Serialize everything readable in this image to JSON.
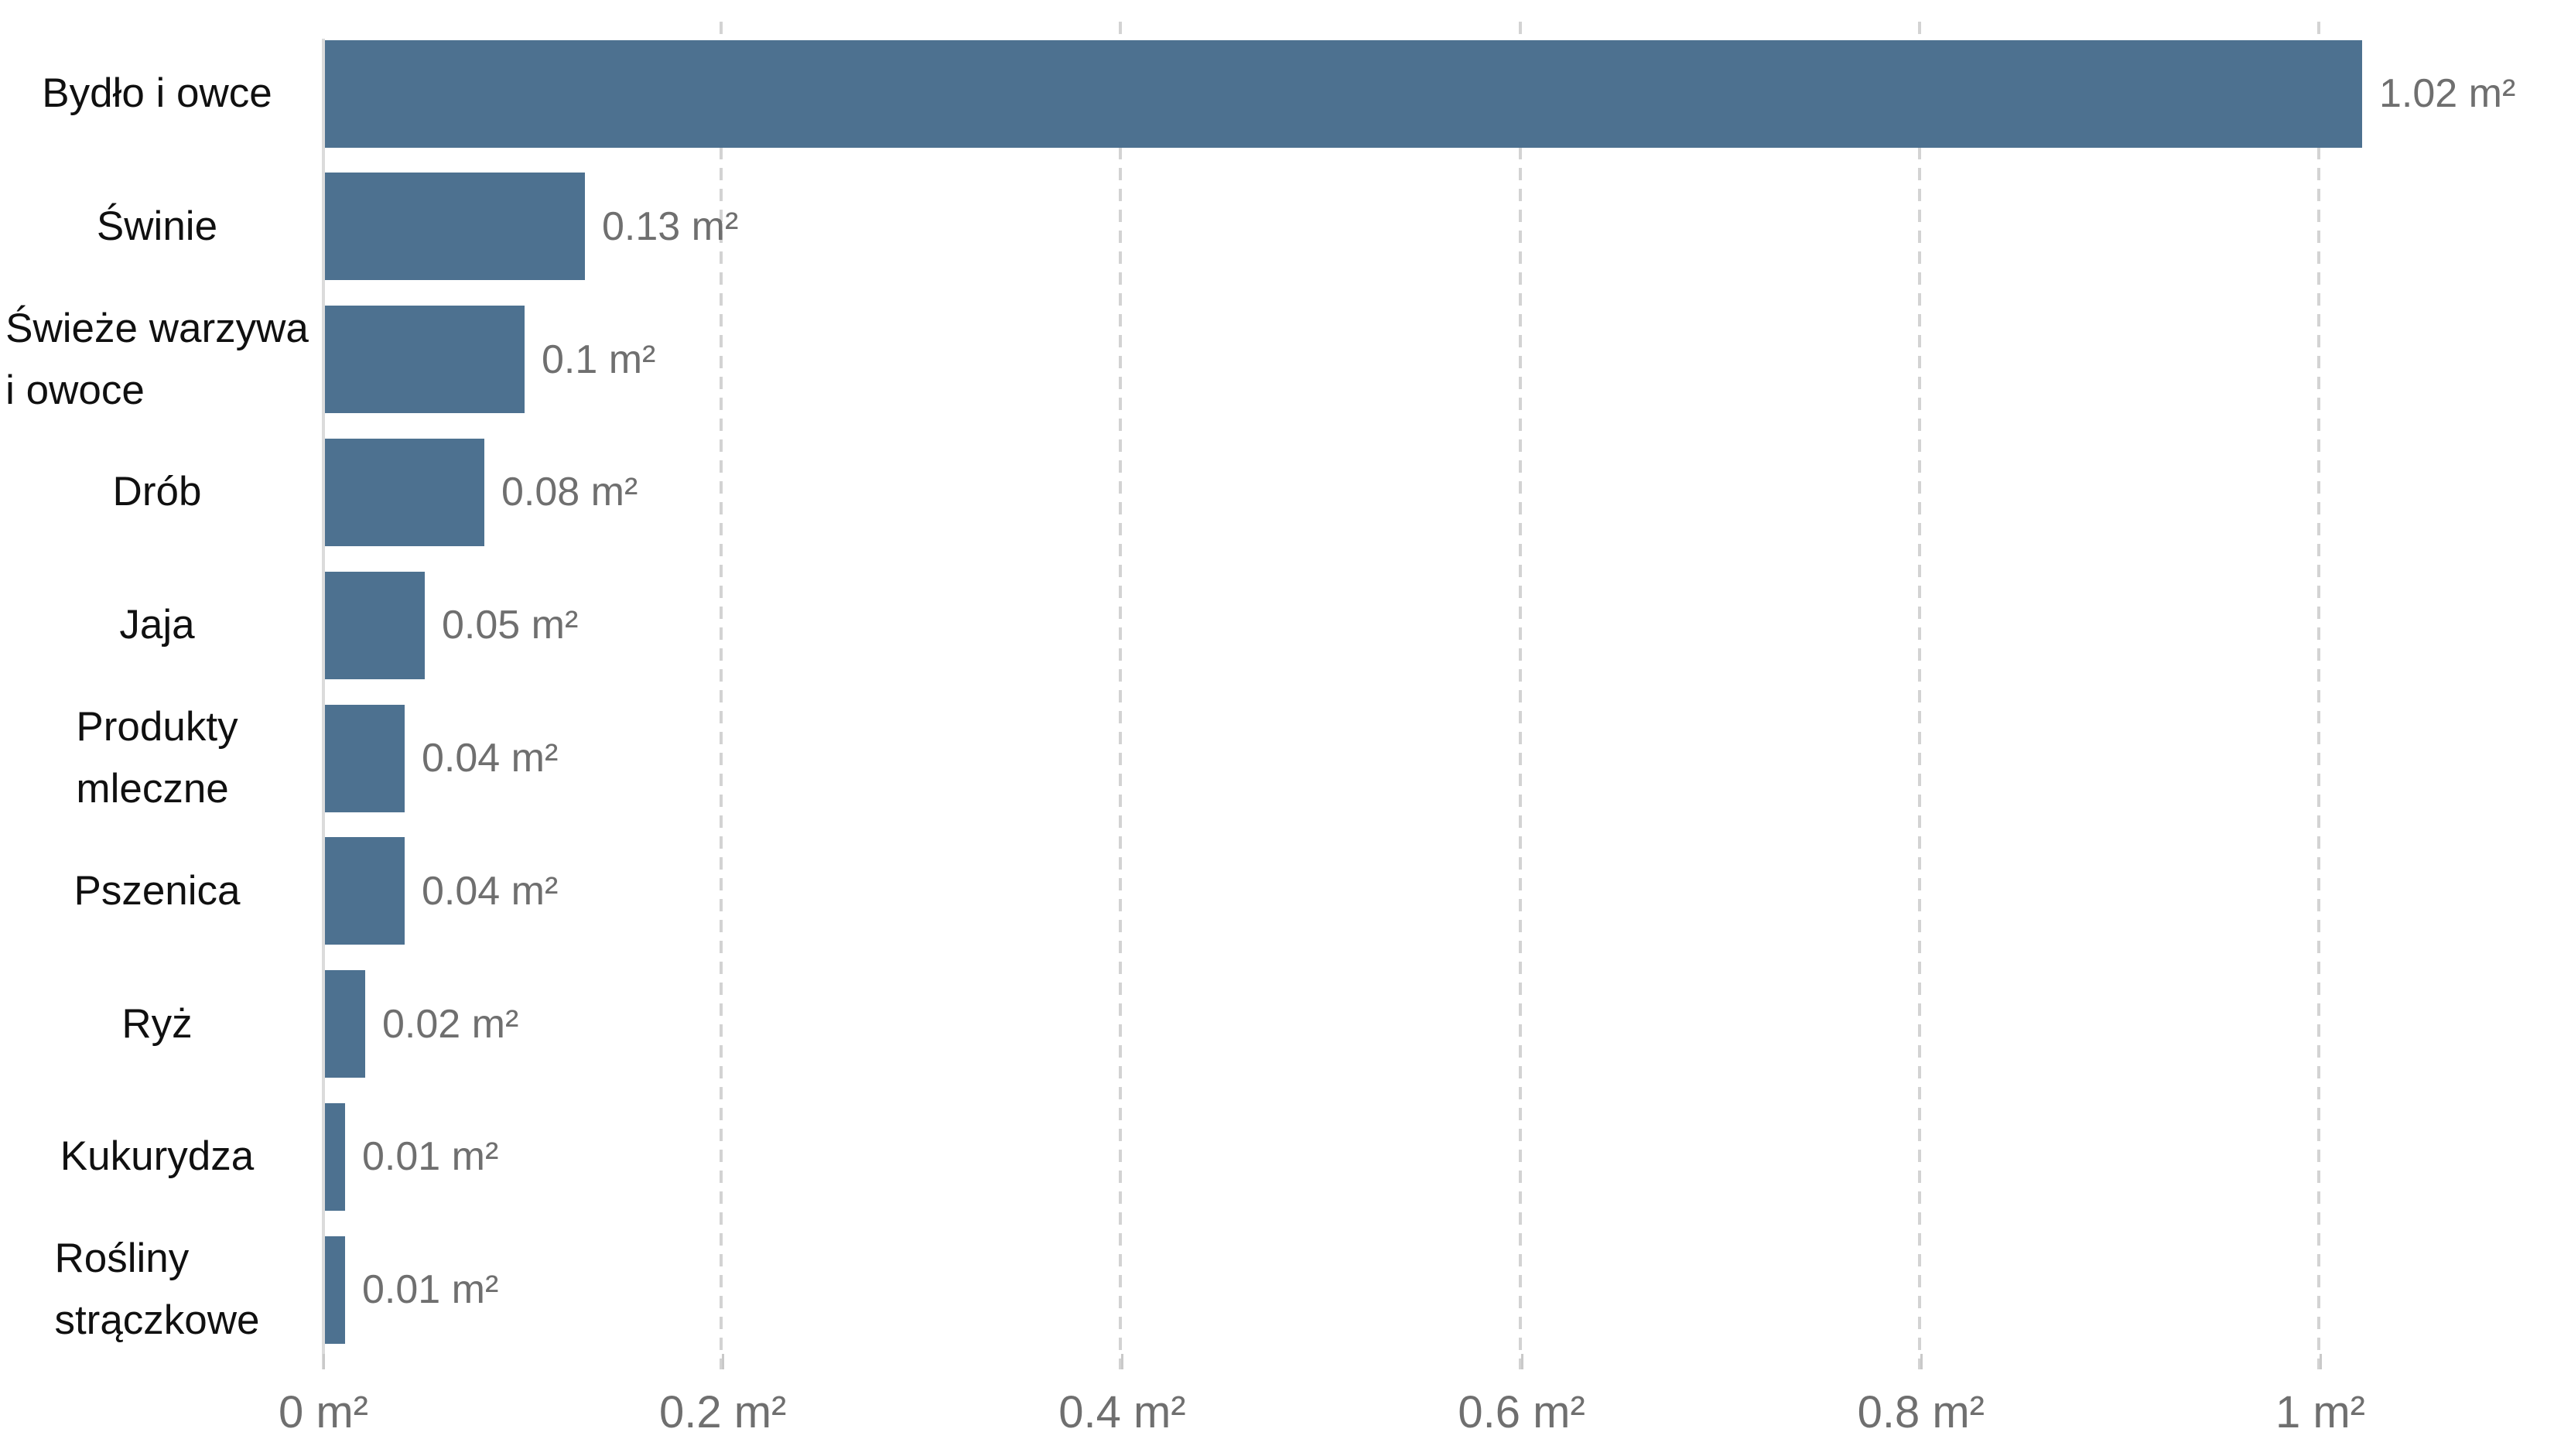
{
  "chart_data": {
    "type": "bar",
    "orientation": "horizontal",
    "title": "",
    "unit": "m²",
    "categories": [
      "Bydło i owce",
      "Świnie",
      "Świeże warzywa\ni owoce",
      "Drób",
      "Jaja",
      "Produkty\nmleczne",
      "Pszenica",
      "Ryż",
      "Kukurydza",
      "Rośliny\nstrączkowe"
    ],
    "values": [
      1.02,
      0.13,
      0.1,
      0.08,
      0.05,
      0.04,
      0.04,
      0.02,
      0.01,
      0.01
    ],
    "value_labels": [
      "1.02 m²",
      "0.13 m²",
      "0.1 m²",
      "0.08 m²",
      "0.05 m²",
      "0.04 m²",
      "0.04 m²",
      "0.02 m²",
      "0.01 m²",
      "0.01 m²"
    ],
    "x_axis": {
      "tick_values": [
        0,
        0.2,
        0.4,
        0.6,
        0.8,
        1
      ],
      "tick_labels": [
        "0 m²",
        "0.2 m²",
        "0.4 m²",
        "0.6 m²",
        "0.8 m²",
        "1 m²"
      ],
      "range": [
        0,
        1.12
      ],
      "grid": "dashed-vertical"
    },
    "legend": "none",
    "colors": {
      "bar": "#4d7190",
      "value_label": "#6f6f6f",
      "category_label": "#101010",
      "axis_label": "#6f6f6f",
      "gridline": "#d3d3d3",
      "axis_line": "#dbdbdb",
      "tick_mark": "#c9c9c9",
      "background": "#ffffff"
    }
  }
}
